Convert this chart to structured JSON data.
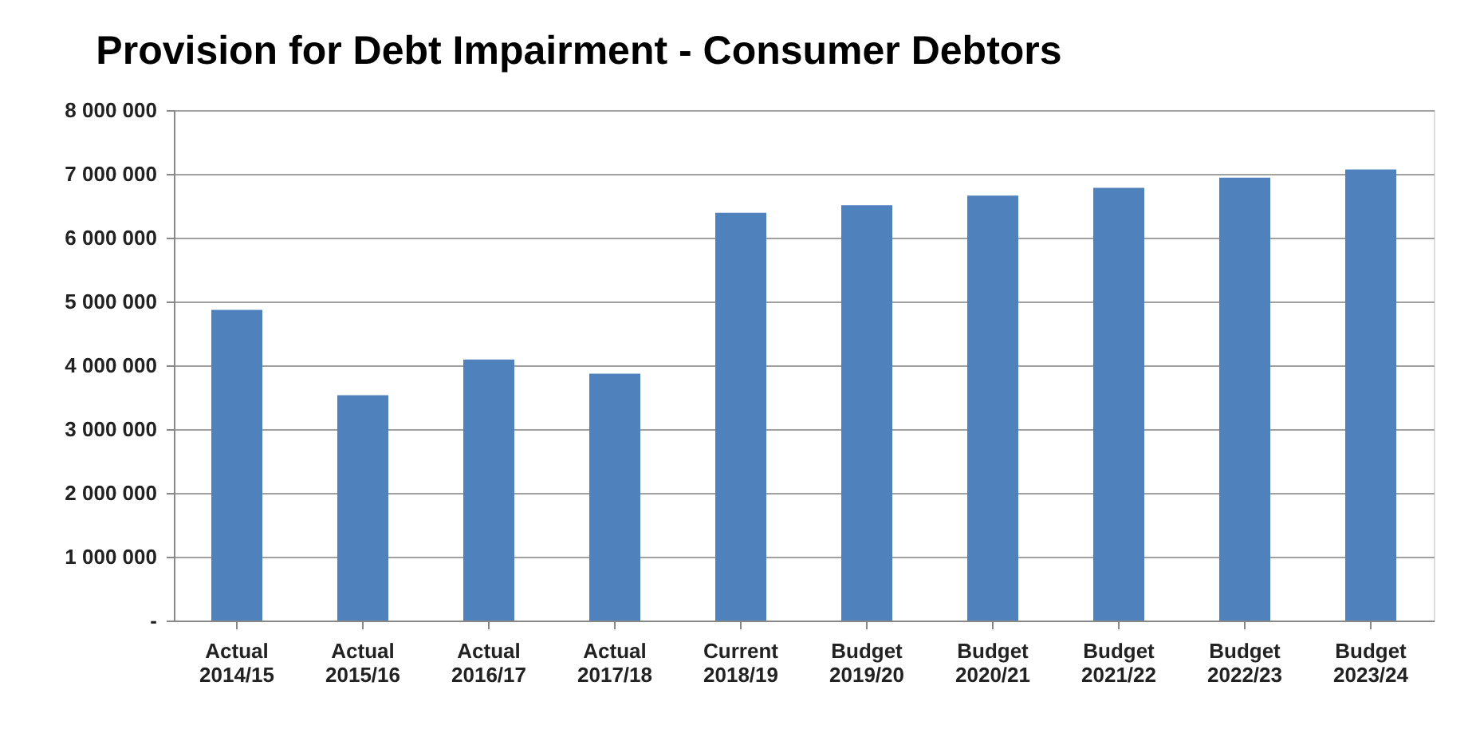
{
  "chart_data": {
    "type": "bar",
    "title": "Provision for Debt Impairment - Consumer Debtors",
    "categories": [
      "Actual\n2014/15",
      "Actual\n2015/16",
      "Actual\n2016/17",
      "Actual\n2017/18",
      "Current\n2018/19",
      "Budget\n2019/20",
      "Budget\n2020/21",
      "Budget\n2021/22",
      "Budget\n2022/23",
      "Budget\n2023/24"
    ],
    "values": [
      4870000,
      3530000,
      4090000,
      3870000,
      6390000,
      6510000,
      6660000,
      6780000,
      6940000,
      7070000
    ],
    "color": "#4f81bd",
    "ylim": [
      0,
      8000000
    ],
    "yticks": [
      {
        "value": 0,
        "label": "-"
      },
      {
        "value": 1000000,
        "label": "1 000 000"
      },
      {
        "value": 2000000,
        "label": "2 000 000"
      },
      {
        "value": 3000000,
        "label": "3 000 000"
      },
      {
        "value": 4000000,
        "label": "4 000 000"
      },
      {
        "value": 5000000,
        "label": "5 000 000"
      },
      {
        "value": 6000000,
        "label": "6 000 000"
      },
      {
        "value": 7000000,
        "label": "7 000 000"
      },
      {
        "value": 8000000,
        "label": "8 000 000"
      }
    ],
    "grid": "y"
  }
}
